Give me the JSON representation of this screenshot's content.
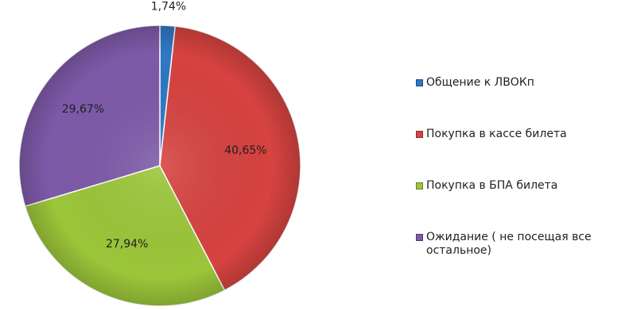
{
  "chart_data": {
    "type": "pie",
    "title": "",
    "start_angle_deg": 0,
    "direction": "clockwise",
    "slices": [
      {
        "label": "Общение  к ЛВОКп",
        "value": 1.74,
        "value_label": "1,74%",
        "color": "#2e78c6"
      },
      {
        "label": "Покупка в кассе билета",
        "value": 40.65,
        "value_label": "40,65%",
        "color": "#d64340"
      },
      {
        "label": "Покупка в БПА билета",
        "value": 27.94,
        "value_label": "27,94%",
        "color": "#9cc63a"
      },
      {
        "label": "Ожидание ( не посещая все остальное)",
        "value": 29.67,
        "value_label": "29,67%",
        "color": "#7d5aa8"
      }
    ],
    "legend_position": "right"
  }
}
